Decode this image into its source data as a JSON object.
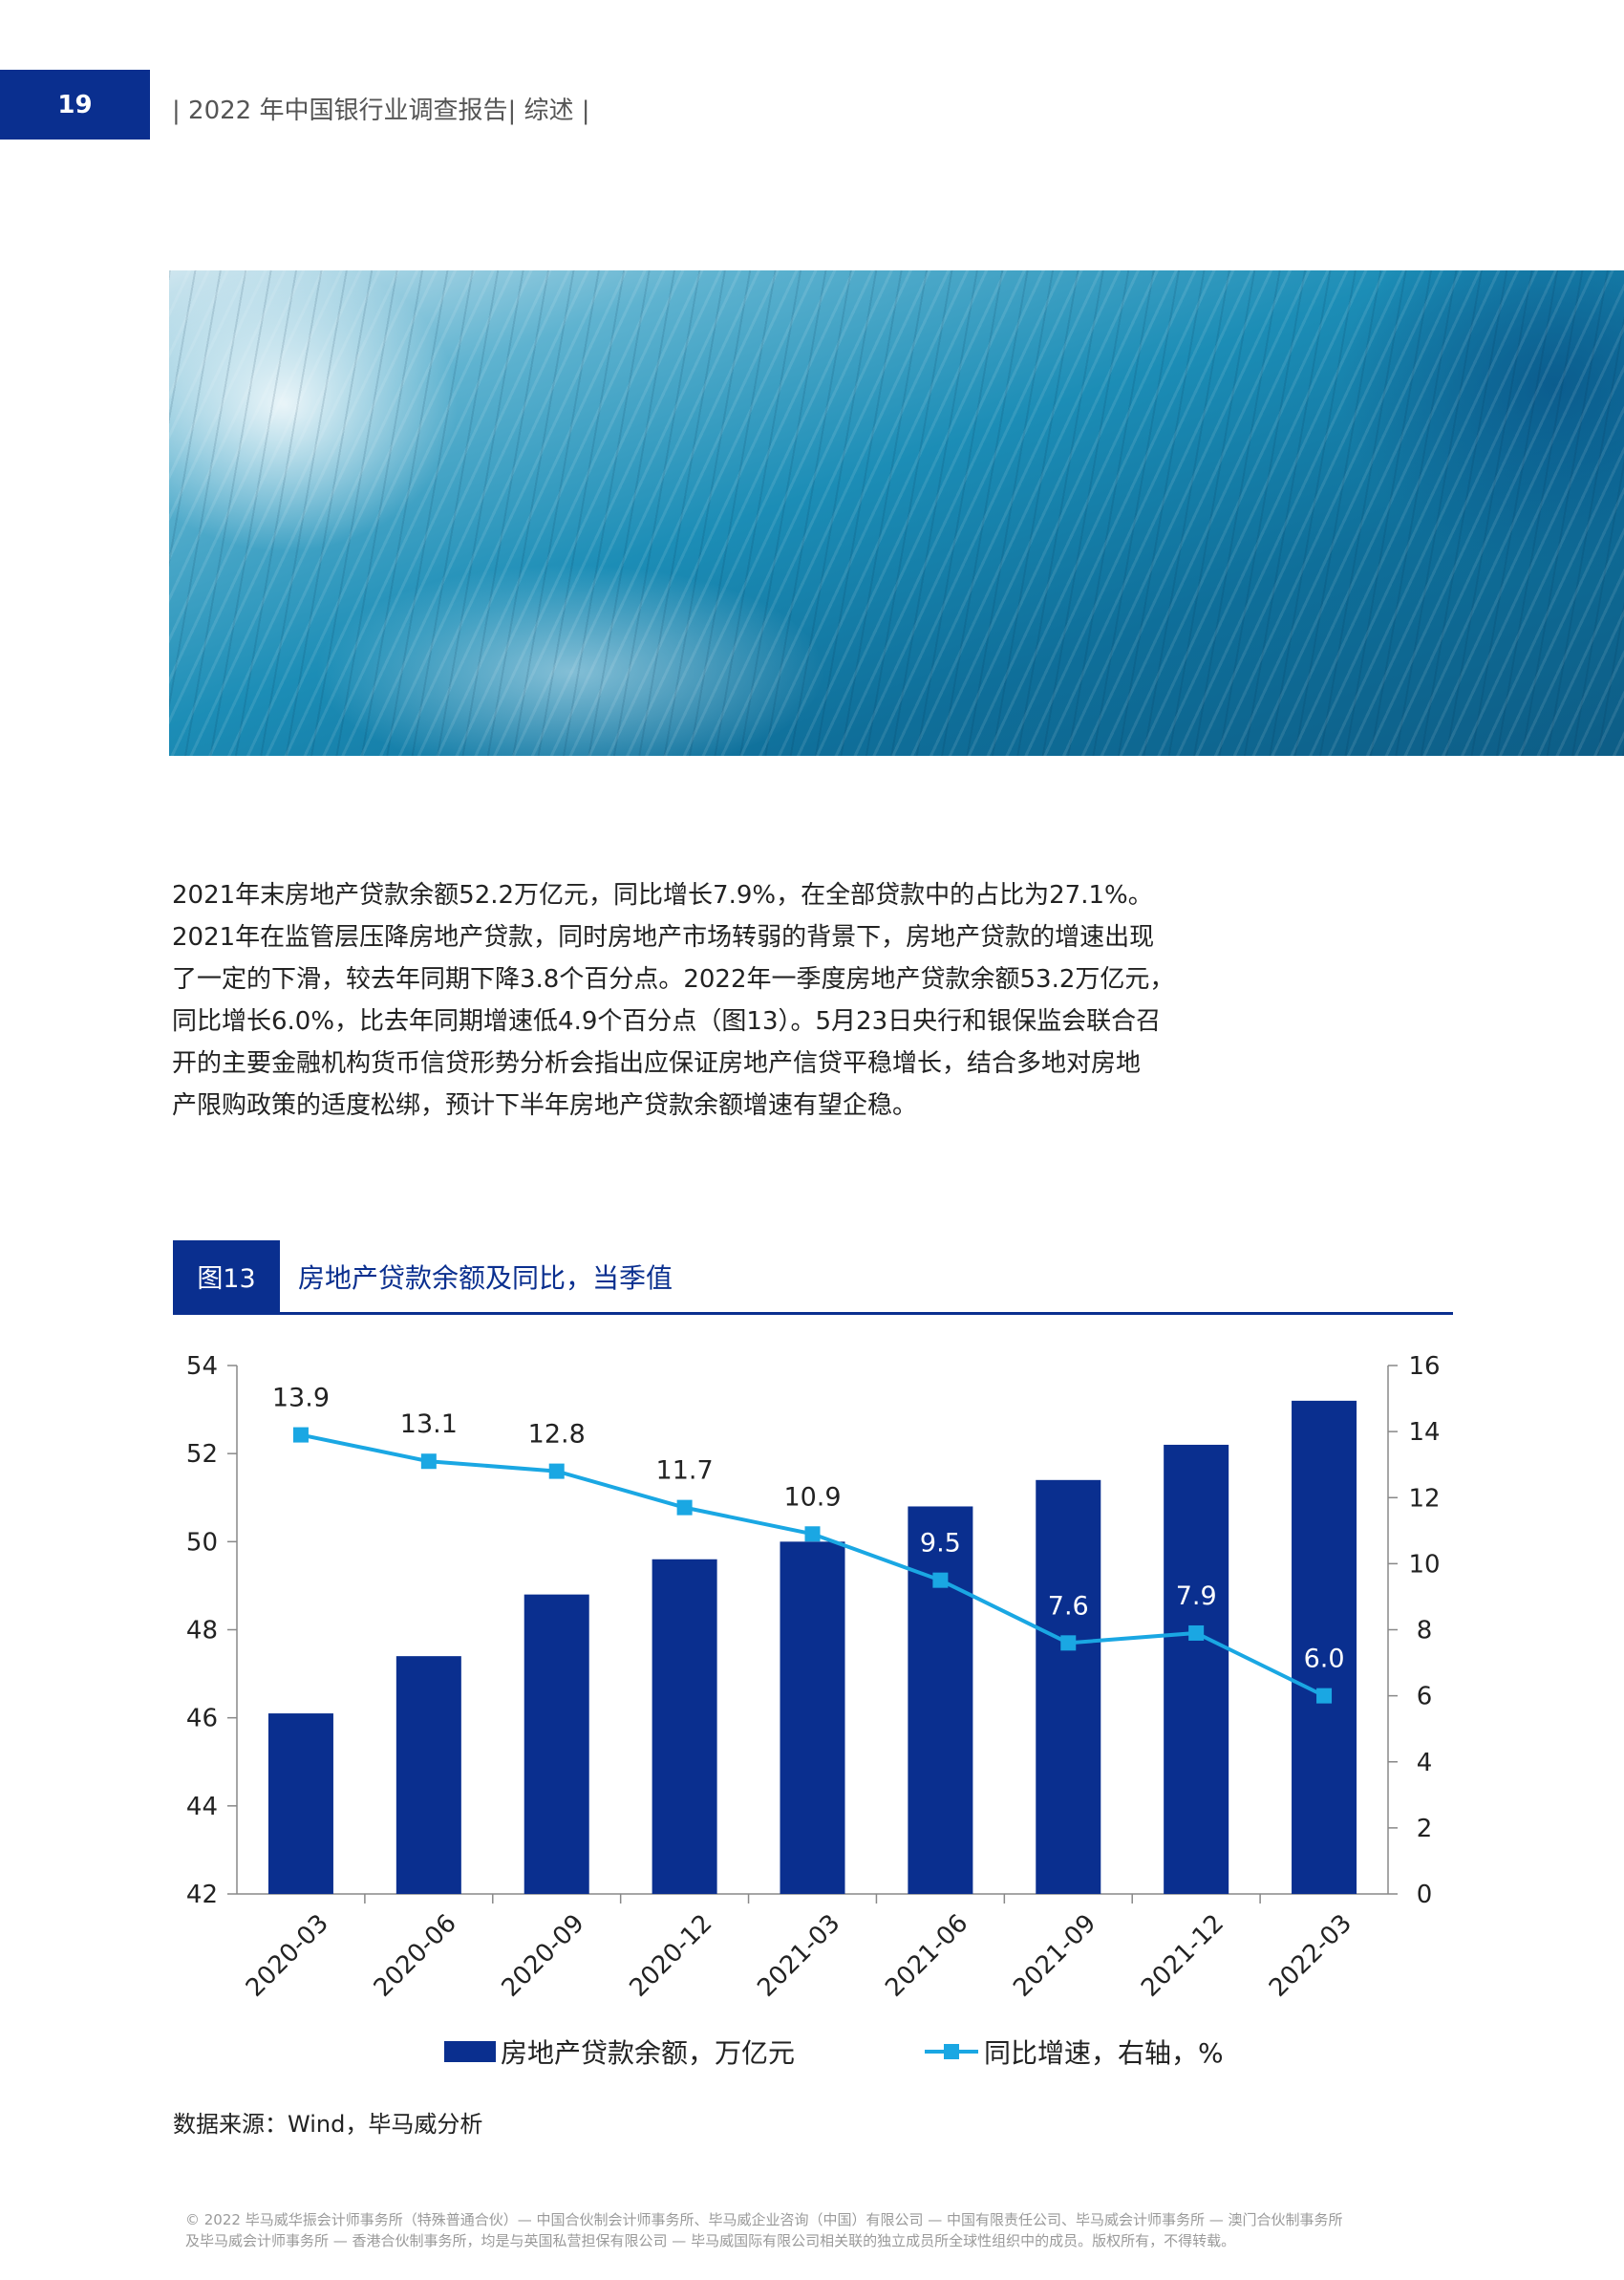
{
  "header": {
    "page_number": "19",
    "running_title": "| 2022 年中国银行业调查报告| 综述 |"
  },
  "hero_image": {
    "description_icon": "ocean-wave-photo"
  },
  "body": {
    "lines": [
      "2021年末房地产贷款余额52.2万亿元，同比增长7.9%，在全部贷款中的占比为27.1%。",
      "2021年在监管层压降房地产贷款，同时房地产市场转弱的背景下，房地产贷款的增速出现",
      "了一定的下滑，较去年同期下降3.8个百分点。2022年一季度房地产贷款余额53.2万亿元，",
      "同比增长6.0%，比去年同期增速低4.9个百分点（图13）。5月23日央行和银保监会联合召",
      "开的主要金融机构货币信贷形势分析会指出应保证房地产信贷平稳增长，结合多地对房地",
      "产限购政策的适度松绑，预计下半年房地产贷款余额增速有望企稳。"
    ]
  },
  "figure": {
    "number": "图13",
    "title": "房地产贷款余额及同比，当季值",
    "source": "数据来源：Wind，毕马威分析"
  },
  "chart_data": {
    "type": "bar",
    "categories": [
      "2020-03",
      "2020-06",
      "2020-09",
      "2020-12",
      "2021-03",
      "2021-06",
      "2021-09",
      "2021-12",
      "2022-03"
    ],
    "series": [
      {
        "name": "房地产贷款余额，万亿元",
        "type": "bar",
        "axis": "left",
        "values": [
          46.1,
          47.4,
          48.8,
          49.6,
          50.0,
          50.8,
          51.4,
          52.2,
          53.2
        ]
      },
      {
        "name": "同比增速，右轴，%",
        "type": "line",
        "axis": "right",
        "values": [
          13.9,
          13.1,
          12.8,
          11.7,
          10.9,
          9.5,
          7.6,
          7.9,
          6.0
        ],
        "labels": [
          "13.9",
          "13.1",
          "12.8",
          "11.7",
          "10.9",
          "9.5",
          "7.6",
          "7.9",
          "6.0"
        ]
      }
    ],
    "ylim_left": [
      42,
      54
    ],
    "yticks_left": [
      "42",
      "44",
      "46",
      "48",
      "50",
      "52",
      "54"
    ],
    "ylim_right": [
      0,
      16
    ],
    "yticks_right": [
      "0",
      "2",
      "4",
      "6",
      "8",
      "10",
      "12",
      "14",
      "16"
    ],
    "legend_placement": "bottom",
    "grid": false,
    "colors": {
      "bar": "#0a2f8f",
      "line": "#1aa7e3"
    }
  },
  "footer": {
    "lines": [
      "© 2022 毕马威华振会计师事务所（特殊普通合伙）— 中国合伙制会计师事务所、毕马威企业咨询（中国）有限公司 — 中国有限责任公司、毕马威会计师事务所 — 澳门合伙制事务所",
      "及毕马威会计师事务所 — 香港合伙制事务所，均是与英国私营担保有限公司 — 毕马威国际有限公司相关联的独立成员所全球性组织中的成员。版权所有，不得转载。"
    ]
  }
}
